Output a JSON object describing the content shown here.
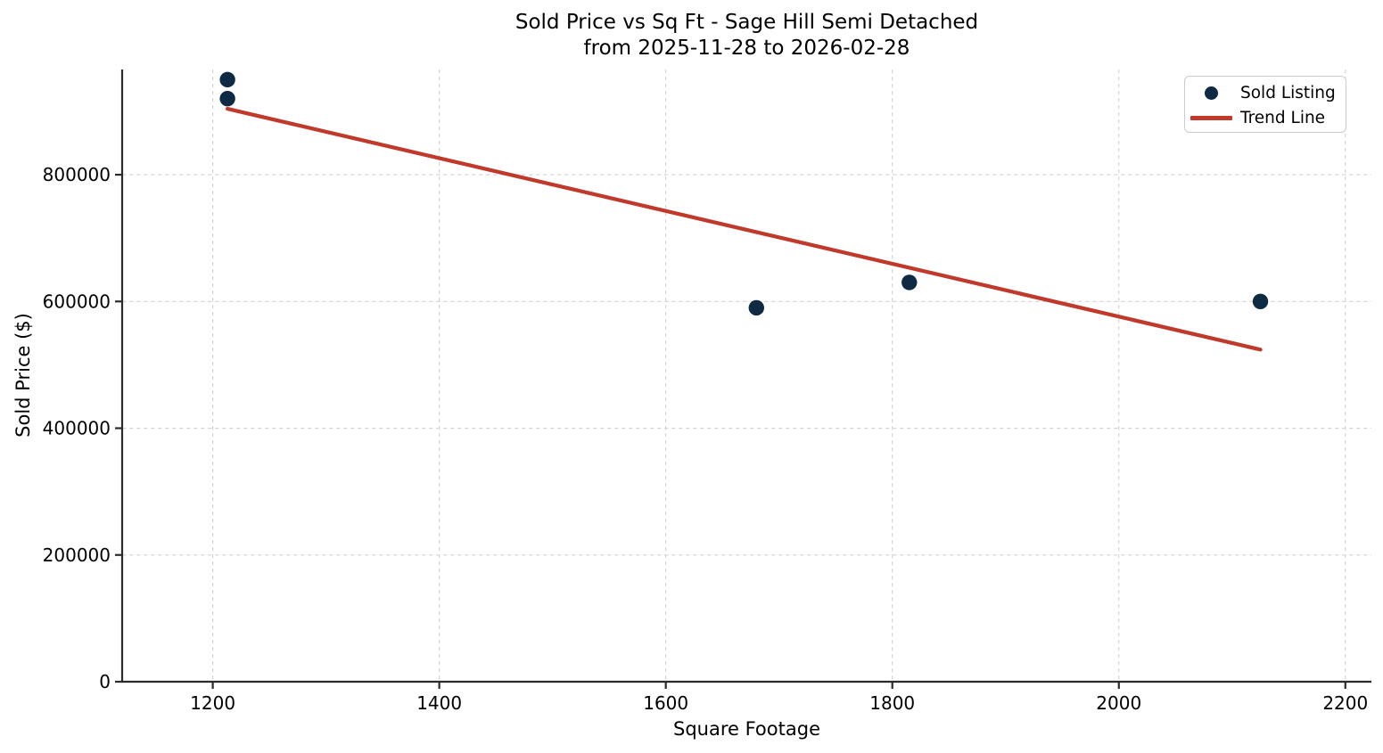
{
  "chart_data": {
    "type": "scatter",
    "title": "Sold Price vs Sq Ft - Sage Hill Semi Detached\nfrom 2025-11-28 to 2026-02-28",
    "title_lines": [
      "Sold Price vs Sq Ft - Sage Hill Semi Detached",
      "from 2025-11-28 to 2026-02-28"
    ],
    "xlabel": "Square Footage",
    "ylabel": "Sold Price ($)",
    "xlim": [
      1120,
      2223
    ],
    "ylim": [
      0,
      966000
    ],
    "x_ticks": [
      1200,
      1400,
      1600,
      1800,
      2000,
      2200
    ],
    "y_ticks": [
      0,
      200000,
      400000,
      600000,
      800000
    ],
    "grid": true,
    "grid_style": "dashed",
    "legend_position": "upper right",
    "series": [
      {
        "name": "Sold Listing",
        "kind": "scatter",
        "color": "#0f2a43",
        "x": [
          1213,
          1213,
          1680,
          1815,
          2125
        ],
        "y": [
          950000,
          920000,
          590000,
          630000,
          600000
        ]
      },
      {
        "name": "Trend Line",
        "kind": "line",
        "color": "#c0392b",
        "x": [
          1213,
          2125
        ],
        "y": [
          904000,
          524000
        ]
      }
    ]
  },
  "colors": {
    "scatter_point": "#0f2a43",
    "trend_line": "#c0392b",
    "gridline": "#d4d4d4",
    "spine": "#2b2b2b",
    "text": "#000000",
    "legend_border": "#cccccc",
    "background": "#ffffff"
  }
}
